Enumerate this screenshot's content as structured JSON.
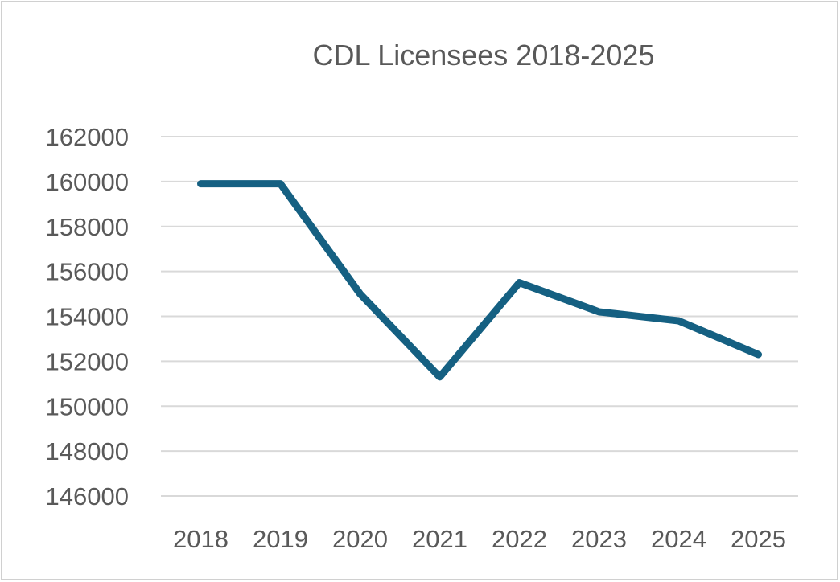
{
  "chart_data": {
    "type": "line",
    "title": "CDL Licensees 2018-2025",
    "xlabel": "",
    "ylabel": "",
    "categories": [
      "2018",
      "2019",
      "2020",
      "2021",
      "2022",
      "2023",
      "2024",
      "2025"
    ],
    "values": [
      159900,
      159900,
      155000,
      151300,
      155500,
      154200,
      153800,
      152300
    ],
    "ylim": [
      146000,
      162000
    ],
    "yticks": [
      146000,
      148000,
      150000,
      152000,
      154000,
      156000,
      158000,
      160000,
      162000
    ],
    "grid": true,
    "legend": "none",
    "line_color": "#156082",
    "grid_color": "#d9d9d9"
  }
}
